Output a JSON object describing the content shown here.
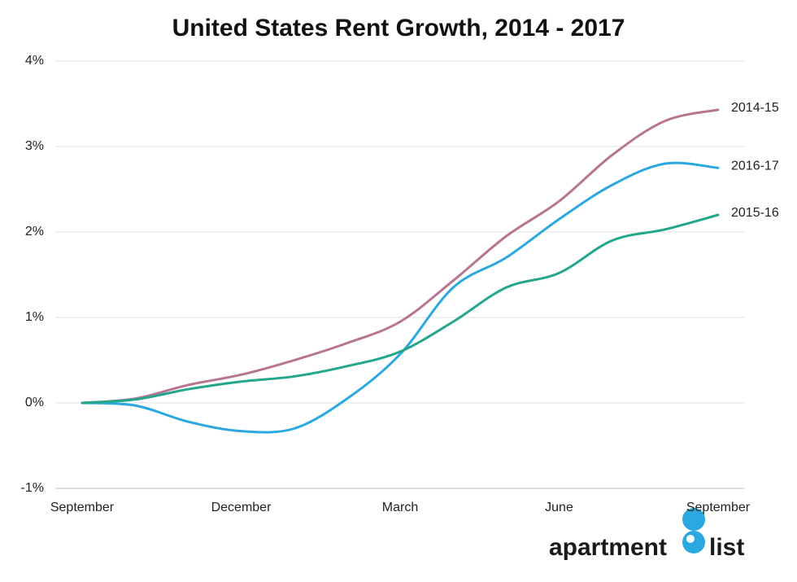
{
  "chart_data": {
    "type": "line",
    "title": "United States Rent Growth, 2014 - 2017",
    "categories": [
      "September",
      null,
      null,
      "December",
      null,
      null,
      "March",
      null,
      null,
      "June",
      null,
      null,
      "September"
    ],
    "series": [
      {
        "name": "2014-15",
        "color": "#b77591",
        "values": [
          0,
          0.05,
          0.21,
          0.33,
          0.5,
          0.7,
          0.95,
          1.43,
          1.95,
          2.36,
          2.9,
          3.3,
          3.43
        ]
      },
      {
        "name": "2016-17",
        "color": "#2aa8df",
        "values": [
          0,
          -0.03,
          -0.22,
          -0.33,
          -0.3,
          0.05,
          0.57,
          1.35,
          1.7,
          2.15,
          2.55,
          2.8,
          2.75
        ]
      },
      {
        "name": "2015-16",
        "color": "#22a68c",
        "values": [
          0,
          0.04,
          0.16,
          0.25,
          0.31,
          0.43,
          0.6,
          0.95,
          1.35,
          1.52,
          1.9,
          2.03,
          2.2
        ]
      }
    ],
    "ylim": [
      -1,
      4
    ],
    "yticks": [
      {
        "value": -1,
        "label": "-1%"
      },
      {
        "value": 0,
        "label": "0%"
      },
      {
        "value": 1,
        "label": "1%"
      },
      {
        "value": 2,
        "label": "2%"
      },
      {
        "value": 3,
        "label": "3%"
      },
      {
        "value": 4,
        "label": "4%"
      }
    ],
    "grid": true
  },
  "logo": {
    "word1": "apartment",
    "word2": "list"
  }
}
